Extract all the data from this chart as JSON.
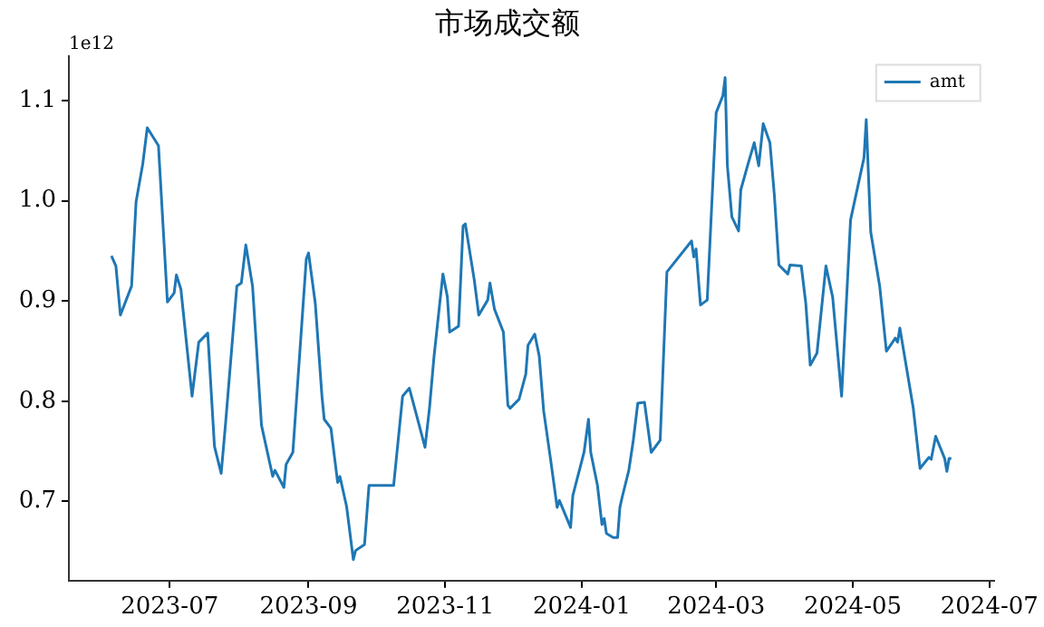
{
  "chart_data": {
    "type": "line",
    "title": "市场成交额",
    "annotations": [
      "1e12"
    ],
    "x": [
      "2023-06-05",
      "2023-06-07",
      "2023-06-09",
      "2023-06-14",
      "2023-06-16",
      "2023-06-19",
      "2023-06-21",
      "2023-06-26",
      "2023-06-30",
      "2023-07-03",
      "2023-07-04",
      "2023-07-06",
      "2023-07-11",
      "2023-07-14",
      "2023-07-18",
      "2023-07-21",
      "2023-07-24",
      "2023-07-26",
      "2023-07-31",
      "2023-08-02",
      "2023-08-04",
      "2023-08-07",
      "2023-08-11",
      "2023-08-16",
      "2023-08-17",
      "2023-08-21",
      "2023-08-22",
      "2023-08-25",
      "2023-08-31",
      "2023-09-01",
      "2023-09-04",
      "2023-09-07",
      "2023-09-08",
      "2023-09-11",
      "2023-09-14",
      "2023-09-15",
      "2023-09-18",
      "2023-09-21",
      "2023-09-22",
      "2023-09-26",
      "2023-09-28",
      "2023-10-09",
      "2023-10-13",
      "2023-10-16",
      "2023-10-19",
      "2023-10-23",
      "2023-10-25",
      "2023-10-27",
      "2023-10-31",
      "2023-11-02",
      "2023-11-03",
      "2023-11-07",
      "2023-11-09",
      "2023-11-10",
      "2023-11-14",
      "2023-11-16",
      "2023-11-20",
      "2023-11-21",
      "2023-11-23",
      "2023-11-27",
      "2023-11-29",
      "2023-11-30",
      "2023-12-04",
      "2023-12-07",
      "2023-12-08",
      "2023-12-11",
      "2023-12-13",
      "2023-12-15",
      "2023-12-18",
      "2023-12-21",
      "2023-12-22",
      "2023-12-27",
      "2023-12-28",
      "2024-01-02",
      "2024-01-04",
      "2024-01-05",
      "2024-01-08",
      "2024-01-10",
      "2024-01-11",
      "2024-01-12",
      "2024-01-15",
      "2024-01-17",
      "2024-01-18",
      "2024-01-19",
      "2024-01-22",
      "2024-01-24",
      "2024-01-26",
      "2024-01-29",
      "2024-02-01",
      "2024-02-05",
      "2024-02-08",
      "2024-02-19",
      "2024-02-20",
      "2024-02-21",
      "2024-02-23",
      "2024-02-26",
      "2024-03-01",
      "2024-03-04",
      "2024-03-05",
      "2024-03-06",
      "2024-03-08",
      "2024-03-11",
      "2024-03-12",
      "2024-03-15",
      "2024-03-18",
      "2024-03-20",
      "2024-03-22",
      "2024-03-25",
      "2024-03-27",
      "2024-03-29",
      "2024-04-02",
      "2024-04-03",
      "2024-04-08",
      "2024-04-10",
      "2024-04-12",
      "2024-04-15",
      "2024-04-19",
      "2024-04-22",
      "2024-04-26",
      "2024-04-30",
      "2024-05-06",
      "2024-05-07",
      "2024-05-09",
      "2024-05-13",
      "2024-05-16",
      "2024-05-20",
      "2024-05-21",
      "2024-05-22",
      "2024-05-28",
      "2024-05-31",
      "2024-06-04",
      "2024-06-05",
      "2024-06-07",
      "2024-06-11",
      "2024-06-12",
      "2024-06-13",
      "2024-06-14"
    ],
    "series": [
      {
        "name": "amt",
        "color": "#1f77b4",
        "values": [
          0.945,
          0.935,
          0.886,
          0.915,
          0.999,
          1.037,
          1.073,
          1.055,
          0.899,
          0.908,
          0.926,
          0.912,
          0.805,
          0.859,
          0.868,
          0.755,
          0.728,
          0.779,
          0.915,
          0.918,
          0.956,
          0.915,
          0.776,
          0.725,
          0.731,
          0.714,
          0.737,
          0.749,
          0.942,
          0.948,
          0.898,
          0.805,
          0.782,
          0.773,
          0.719,
          0.725,
          0.695,
          0.642,
          0.651,
          0.657,
          0.716,
          0.716,
          0.805,
          0.813,
          0.788,
          0.754,
          0.793,
          0.844,
          0.927,
          0.904,
          0.869,
          0.875,
          0.975,
          0.977,
          0.921,
          0.886,
          0.901,
          0.918,
          0.892,
          0.869,
          0.796,
          0.793,
          0.802,
          0.827,
          0.856,
          0.867,
          0.845,
          0.79,
          0.743,
          0.694,
          0.701,
          0.674,
          0.706,
          0.749,
          0.782,
          0.749,
          0.716,
          0.677,
          0.683,
          0.668,
          0.664,
          0.664,
          0.694,
          0.704,
          0.731,
          0.761,
          0.798,
          0.799,
          0.749,
          0.761,
          0.929,
          0.96,
          0.944,
          0.952,
          0.896,
          0.901,
          1.088,
          1.105,
          1.123,
          1.035,
          0.984,
          0.97,
          1.011,
          1.035,
          1.058,
          1.035,
          1.077,
          1.058,
          1.005,
          0.936,
          0.927,
          0.936,
          0.935,
          0.898,
          0.836,
          0.848,
          0.935,
          0.904,
          0.805,
          0.981,
          1.043,
          1.081,
          0.969,
          0.915,
          0.85,
          0.863,
          0.859,
          0.873,
          0.793,
          0.733,
          0.744,
          0.742,
          0.765,
          0.743,
          0.73,
          0.743,
          0.743
        ]
      }
    ],
    "xlim": [
      "2023-05-17",
      "2024-07-03"
    ],
    "xticks": [
      "2023-07",
      "2023-09",
      "2023-11",
      "2024-01",
      "2024-03",
      "2024-05",
      "2024-07"
    ],
    "ylim": [
      0.621,
      1.144
    ],
    "yticks": [
      0.7,
      0.8,
      0.9,
      {
        "value": 1.0,
        "label": "1.0"
      },
      1.1
    ],
    "grid": false,
    "legend": "top right",
    "line_style": "solid",
    "marker": "none"
  }
}
